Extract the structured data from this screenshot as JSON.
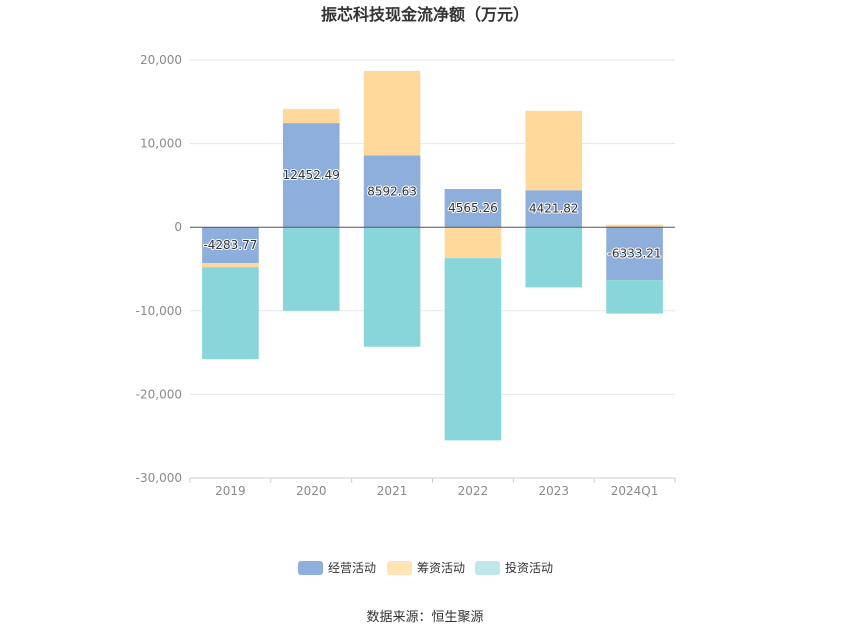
{
  "chart_data": {
    "type": "bar",
    "stacked": true,
    "title": "振芯科技现金流净额（万元）",
    "categories": [
      "2019",
      "2020",
      "2021",
      "2022",
      "2023",
      "2024Q1"
    ],
    "ylim": [
      -30000,
      20000
    ],
    "yticks": [
      20000,
      10000,
      0,
      -10000,
      -20000,
      -30000
    ],
    "ytick_labels": [
      "20,000",
      "10,000",
      "0",
      "-10,000",
      "-20,000",
      "-30,000"
    ],
    "grid": true,
    "legend_position": "bottom",
    "series": [
      {
        "name": "经营活动",
        "color": "#8eaedb",
        "values": [
          -4283.77,
          12452.49,
          8592.63,
          4565.26,
          4421.82,
          -6333.21
        ],
        "labels": [
          "-4283.77",
          "12452.49",
          "8592.63",
          "4565.26",
          "4421.82",
          "-6333.21"
        ]
      },
      {
        "name": "筹资活动",
        "color": "#ffd99b",
        "values": [
          -500,
          1700,
          10100,
          -3700,
          9500,
          300
        ]
      },
      {
        "name": "投资活动",
        "color": "#88d6da",
        "values": [
          -11000,
          -10000,
          -14300,
          -21800,
          -7200,
          -4000
        ]
      }
    ],
    "legend_colors": [
      "#8eaedb",
      "#ffe5b4",
      "#bfe8ea"
    ],
    "source": "数据来源：恒生聚源"
  }
}
